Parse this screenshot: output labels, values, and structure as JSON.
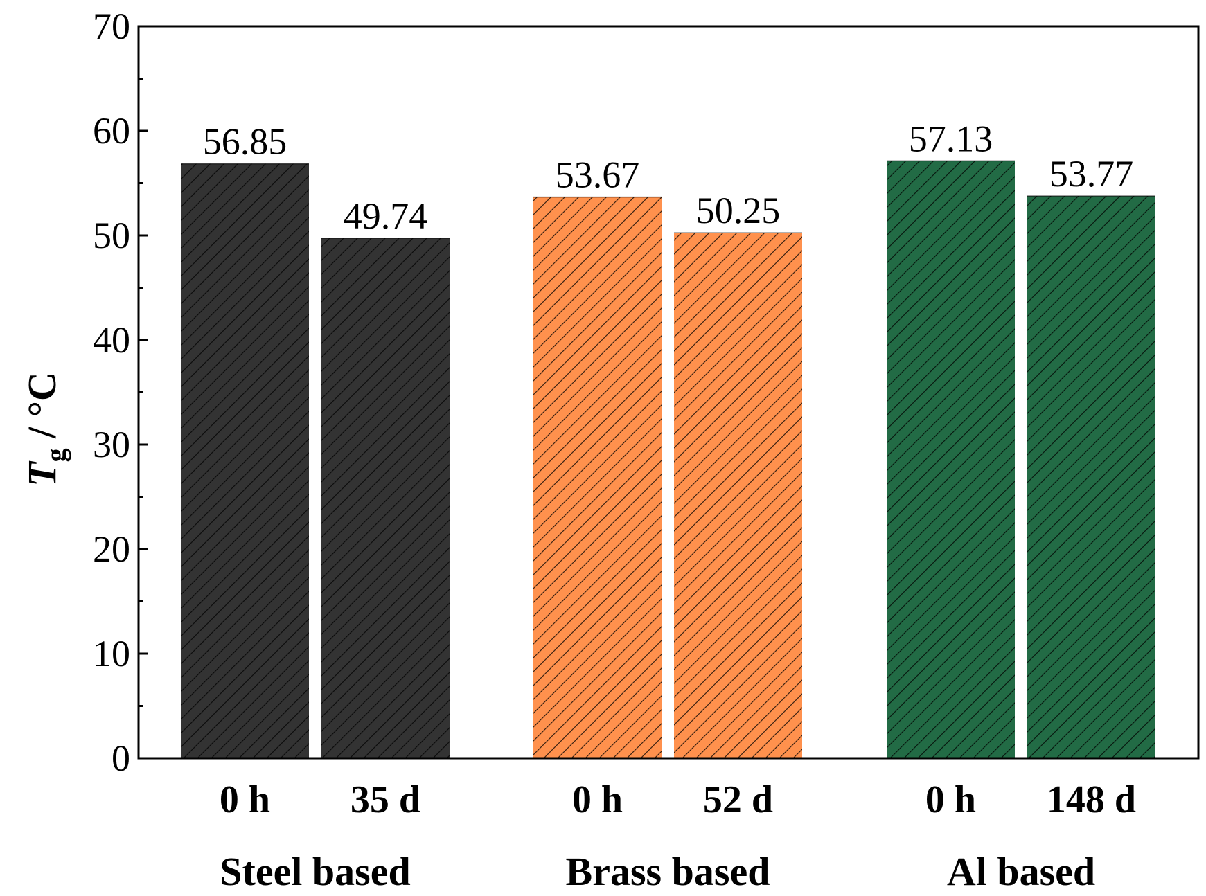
{
  "chart_data": {
    "type": "bar",
    "title": "",
    "xlabel": "",
    "ylabel_main": "T",
    "ylabel_sub": "g",
    "ylabel_rest": " / °C",
    "ylim": [
      0,
      70
    ],
    "yticks": [
      0,
      10,
      20,
      30,
      40,
      50,
      60,
      70
    ],
    "grid": false,
    "groups": [
      {
        "name": "Steel based",
        "color": "#333333",
        "bars": [
          {
            "label": "0 h",
            "value": 56.85,
            "value_text": "56.85"
          },
          {
            "label": "35 d",
            "value": 49.74,
            "value_text": "49.74"
          }
        ]
      },
      {
        "name": "Brass based",
        "color": "#FF914D",
        "bars": [
          {
            "label": "0 h",
            "value": 53.67,
            "value_text": "53.67"
          },
          {
            "label": "52 d",
            "value": 50.25,
            "value_text": "50.25"
          }
        ]
      },
      {
        "name": "Al based",
        "color": "#226B45",
        "bars": [
          {
            "label": "0 h",
            "value": 57.13,
            "value_text": "57.13"
          },
          {
            "label": "148 d",
            "value": 53.77,
            "value_text": "53.77"
          }
        ]
      }
    ]
  }
}
